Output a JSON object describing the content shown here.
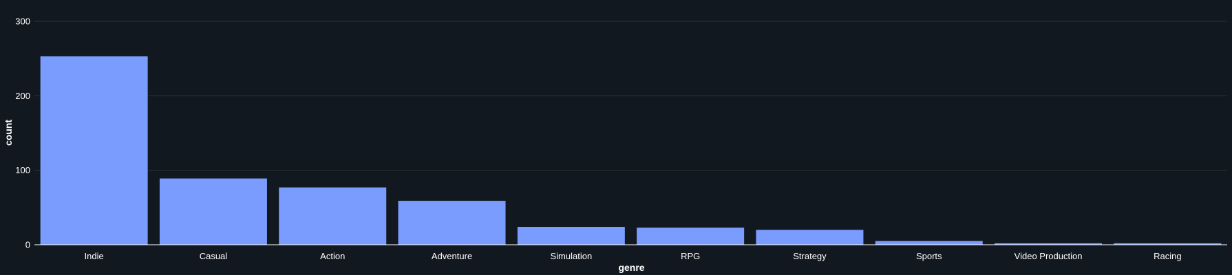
{
  "chart_data": {
    "type": "bar",
    "categories": [
      "Indie",
      "Casual",
      "Action",
      "Adventure",
      "Simulation",
      "RPG",
      "Strategy",
      "Sports",
      "Video Production",
      "Racing"
    ],
    "values": [
      253,
      89,
      77,
      59,
      24,
      23,
      20,
      5,
      2,
      2
    ],
    "xlabel": "genre",
    "ylabel": "count",
    "ylim": [
      0,
      320
    ],
    "yticks": [
      0,
      100,
      200,
      300
    ],
    "grid": true,
    "colors": {
      "background": "#111820",
      "bar": "#7b9cff",
      "grid": "#2a3a2e",
      "axis": "#ffffff"
    }
  }
}
